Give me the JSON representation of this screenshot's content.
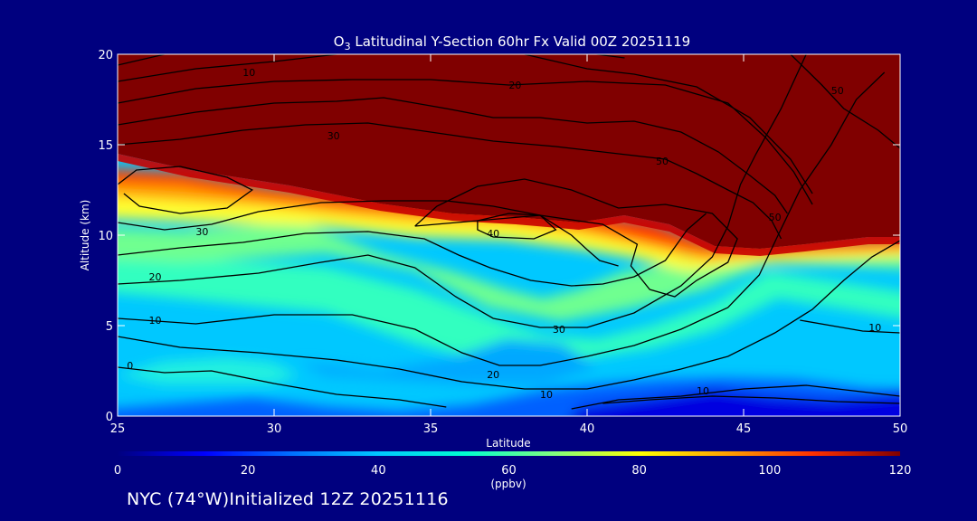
{
  "chart_data": {
    "type": "heatmap",
    "title_prefix": "O",
    "title_sub": "3",
    "title_rest": " Latitudinal Y-Section 60hr  Fx Valid 00Z 20251119",
    "xlabel": "Latitude",
    "ylabel": "Altitude (km)",
    "xlim": [
      25,
      50
    ],
    "ylim": [
      0,
      20
    ],
    "x_ticks": [
      "25",
      "30",
      "35",
      "40",
      "45",
      "50"
    ],
    "y_ticks": [
      "0",
      "5",
      "10",
      "15",
      "20"
    ],
    "colorbar": {
      "range": [
        0,
        120
      ],
      "ticks": [
        "0",
        "20",
        "40",
        "60",
        "80",
        "100",
        "120"
      ],
      "unit_label": "(ppbv)",
      "colors": [
        "#000080",
        "#0000ff",
        "#0070ff",
        "#00c8ff",
        "#00ffd0",
        "#80ff80",
        "#ffff00",
        "#ffa000",
        "#ff3000",
        "#800000"
      ]
    },
    "contour_labels": [
      {
        "text": "10",
        "lat": 29.2,
        "alt": 19.0
      },
      {
        "text": "20",
        "lat": 37.7,
        "alt": 18.3
      },
      {
        "text": "30",
        "lat": 31.9,
        "alt": 15.5
      },
      {
        "text": "50",
        "lat": 42.4,
        "alt": 14.1
      },
      {
        "text": "50",
        "lat": 48.0,
        "alt": 18.0
      },
      {
        "text": "50",
        "lat": 46.0,
        "alt": 11.0
      },
      {
        "text": "40",
        "lat": 37.0,
        "alt": 10.1
      },
      {
        "text": "30",
        "lat": 27.7,
        "alt": 10.2
      },
      {
        "text": "20",
        "lat": 26.2,
        "alt": 7.7
      },
      {
        "text": "10",
        "lat": 26.2,
        "alt": 5.3
      },
      {
        "text": "0",
        "lat": 25.4,
        "alt": 2.8
      },
      {
        "text": "30",
        "lat": 39.1,
        "alt": 4.8
      },
      {
        "text": "20",
        "lat": 37.0,
        "alt": 2.3
      },
      {
        "text": "10",
        "lat": 38.7,
        "alt": 1.2
      },
      {
        "text": "10",
        "lat": 43.7,
        "alt": 1.4
      },
      {
        "text": "10",
        "lat": 49.2,
        "alt": 4.9
      }
    ],
    "contour_lines": [
      [
        [
          25,
          12.8
        ],
        [
          25.6,
          13.6
        ],
        [
          27,
          13.8
        ],
        [
          28.5,
          13.2
        ],
        [
          29.3,
          12.5
        ],
        [
          28.5,
          11.5
        ],
        [
          27,
          11.2
        ],
        [
          25.7,
          11.6
        ],
        [
          25.2,
          12.3
        ]
      ],
      [
        [
          25,
          10.7
        ],
        [
          26.5,
          10.3
        ],
        [
          28,
          10.6
        ],
        [
          29.5,
          11.3
        ],
        [
          31.5,
          11.8
        ],
        [
          33.5,
          11.9
        ],
        [
          35.5,
          11.9
        ],
        [
          37,
          11.6
        ],
        [
          38.5,
          11.1
        ],
        [
          39.5,
          10
        ],
        [
          40,
          9.2
        ],
        [
          40.4,
          8.6
        ],
        [
          41,
          8.3
        ]
      ],
      [
        [
          25,
          8.9
        ],
        [
          27,
          9.3
        ],
        [
          29,
          9.6
        ],
        [
          31,
          10.1
        ],
        [
          33,
          10.2
        ],
        [
          34.8,
          9.8
        ],
        [
          35.9,
          8.9
        ],
        [
          36.9,
          8.2
        ],
        [
          38.2,
          7.5
        ],
        [
          39.5,
          7.2
        ],
        [
          40.5,
          7.3
        ],
        [
          41.5,
          7.7
        ],
        [
          42.5,
          8.6
        ],
        [
          43.2,
          10.3
        ],
        [
          43.8,
          11.2
        ]
      ],
      [
        [
          25,
          7.3
        ],
        [
          27,
          7.5
        ],
        [
          29.5,
          7.9
        ],
        [
          31.5,
          8.5
        ],
        [
          33,
          8.9
        ],
        [
          34.5,
          8.2
        ],
        [
          35.8,
          6.6
        ],
        [
          37,
          5.4
        ],
        [
          38.5,
          4.9
        ],
        [
          40,
          4.9
        ],
        [
          41.5,
          5.7
        ],
        [
          43,
          7.2
        ],
        [
          44,
          8.8
        ],
        [
          44.5,
          10.5
        ],
        [
          44.9,
          12.8
        ],
        [
          45.4,
          14.5
        ],
        [
          46.2,
          17
        ],
        [
          47,
          20
        ]
      ],
      [
        [
          25,
          5.4
        ],
        [
          27.5,
          5.1
        ],
        [
          30,
          5.6
        ],
        [
          32.5,
          5.6
        ],
        [
          34.5,
          4.8
        ],
        [
          36,
          3.5
        ],
        [
          37.2,
          2.8
        ],
        [
          38.5,
          2.8
        ],
        [
          40,
          3.3
        ],
        [
          41.5,
          3.9
        ],
        [
          43,
          4.8
        ],
        [
          44.5,
          6
        ],
        [
          45.5,
          7.8
        ],
        [
          46.1,
          10
        ],
        [
          46.8,
          12.5
        ],
        [
          47.8,
          15
        ],
        [
          48.6,
          17.5
        ],
        [
          49.5,
          19
        ]
      ],
      [
        [
          25,
          4.4
        ],
        [
          27,
          3.8
        ],
        [
          29.5,
          3.5
        ],
        [
          32,
          3.1
        ],
        [
          34,
          2.6
        ],
        [
          36,
          1.9
        ],
        [
          38,
          1.5
        ],
        [
          40,
          1.5
        ],
        [
          41.5,
          2
        ],
        [
          43,
          2.6
        ],
        [
          44.5,
          3.3
        ],
        [
          46,
          4.6
        ],
        [
          47.2,
          5.9
        ],
        [
          48.2,
          7.5
        ],
        [
          49.1,
          8.8
        ],
        [
          50,
          9.7
        ]
      ],
      [
        [
          25,
          2.7
        ],
        [
          26.5,
          2.4
        ],
        [
          28,
          2.5
        ],
        [
          30,
          1.8
        ],
        [
          32,
          1.2
        ],
        [
          34,
          0.9
        ],
        [
          35.5,
          0.5
        ]
      ],
      [
        [
          39.5,
          0.4
        ],
        [
          41,
          0.9
        ],
        [
          43,
          1.1
        ],
        [
          45,
          1.5
        ],
        [
          47,
          1.7
        ],
        [
          49,
          1.3
        ],
        [
          50,
          1.1
        ]
      ],
      [
        [
          40.5,
          0.7
        ],
        [
          42,
          0.9
        ],
        [
          44,
          1.1
        ],
        [
          46,
          1.0
        ],
        [
          48,
          0.8
        ],
        [
          50,
          0.7
        ]
      ],
      [
        [
          46.8,
          5.3
        ],
        [
          47.8,
          5
        ],
        [
          48.8,
          4.7
        ],
        [
          50,
          4.6
        ]
      ],
      [
        [
          34.5,
          10.5
        ],
        [
          35.2,
          11.6
        ],
        [
          36.5,
          12.7
        ],
        [
          38,
          13.1
        ],
        [
          39.5,
          12.5
        ],
        [
          41,
          11.5
        ],
        [
          42.5,
          11.7
        ],
        [
          44,
          11.2
        ],
        [
          44.8,
          9.8
        ],
        [
          44.5,
          8.5
        ],
        [
          43.5,
          7.5
        ],
        [
          42.8,
          6.6
        ],
        [
          42,
          7
        ],
        [
          41.4,
          8.3
        ],
        [
          41.6,
          9.5
        ],
        [
          40.5,
          10.6
        ],
        [
          38.5,
          11.1
        ],
        [
          36.5,
          10.8
        ],
        [
          34.5,
          10.5
        ]
      ],
      [
        [
          36.5,
          10.8
        ],
        [
          37.5,
          11.2
        ],
        [
          38.5,
          11.1
        ],
        [
          39,
          10.3
        ],
        [
          38.3,
          9.8
        ],
        [
          37,
          9.9
        ],
        [
          36.5,
          10.3
        ],
        [
          36.5,
          10.8
        ]
      ],
      [
        [
          25,
          15
        ],
        [
          27,
          15.3
        ],
        [
          29,
          15.8
        ],
        [
          31,
          16.1
        ],
        [
          33,
          16.2
        ],
        [
          35,
          15.7
        ],
        [
          37,
          15.2
        ],
        [
          39,
          14.9
        ],
        [
          41,
          14.5
        ],
        [
          42.5,
          14.2
        ],
        [
          43.5,
          13.4
        ],
        [
          44.5,
          12.5
        ],
        [
          45.3,
          11.8
        ],
        [
          45.9,
          10.8
        ],
        [
          46.2,
          9.8
        ]
      ],
      [
        [
          25,
          16.1
        ],
        [
          27.5,
          16.8
        ],
        [
          30,
          17.3
        ],
        [
          32,
          17.4
        ],
        [
          33.5,
          17.6
        ],
        [
          35.5,
          17
        ],
        [
          37,
          16.5
        ],
        [
          38.5,
          16.5
        ],
        [
          40,
          16.2
        ],
        [
          41.5,
          16.3
        ],
        [
          43,
          15.7
        ],
        [
          44.2,
          14.6
        ],
        [
          45.2,
          13.3
        ],
        [
          46,
          12.2
        ],
        [
          46.4,
          11.2
        ]
      ],
      [
        [
          25,
          17.3
        ],
        [
          27.5,
          18.1
        ],
        [
          30,
          18.5
        ],
        [
          32.5,
          18.6
        ],
        [
          35,
          18.6
        ],
        [
          37.5,
          18.3
        ],
        [
          40,
          18.5
        ],
        [
          42.5,
          18.3
        ],
        [
          44.5,
          17.3
        ],
        [
          45.7,
          15.4
        ],
        [
          46.6,
          13.5
        ],
        [
          47.2,
          11.7
        ]
      ],
      [
        [
          25,
          18.5
        ],
        [
          27.5,
          19.2
        ],
        [
          30,
          19.6
        ],
        [
          32,
          20
        ]
      ],
      [
        [
          25,
          19.4
        ],
        [
          26.5,
          20
        ]
      ],
      [
        [
          38,
          20
        ],
        [
          40,
          19.2
        ],
        [
          41.5,
          18.9
        ],
        [
          43.5,
          18.2
        ],
        [
          45.2,
          16.5
        ],
        [
          46.5,
          14.2
        ],
        [
          47.2,
          12.3
        ]
      ],
      [
        [
          40.3,
          20
        ],
        [
          41.2,
          19.8
        ]
      ],
      [
        [
          46.5,
          20
        ],
        [
          47.5,
          18.3
        ],
        [
          48.2,
          17
        ],
        [
          49.3,
          15.8
        ],
        [
          50,
          14.8
        ]
      ]
    ]
  }
}
